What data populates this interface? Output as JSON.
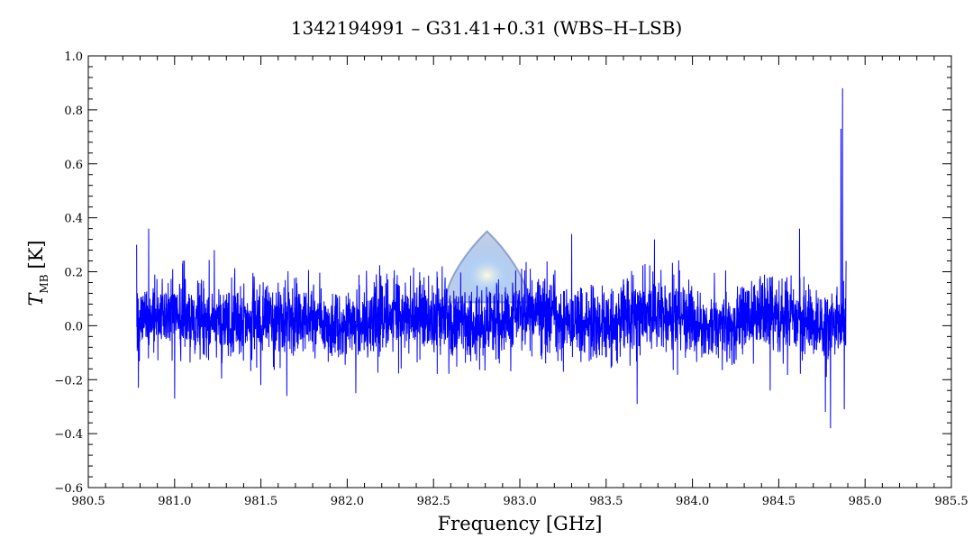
{
  "chart_data": {
    "type": "line",
    "title": "1342194991 – G31.41+0.31 (WBS–H–LSB)",
    "xlabel": "Frequency [GHz]",
    "ylabel_main": "T",
    "ylabel_sub": "MB",
    "ylabel_unit": "[K]",
    "xlim": [
      980.5,
      985.5
    ],
    "ylim": [
      -0.6,
      1.0
    ],
    "x_ticks": [
      "980.5",
      "981.0",
      "981.5",
      "982.0",
      "982.5",
      "983.0",
      "983.5",
      "984.0",
      "984.5",
      "985.0",
      "985.5"
    ],
    "y_ticks": [
      "−0.6",
      "−0.4",
      "−0.2",
      "0.0",
      "0.2",
      "0.4",
      "0.6",
      "0.8",
      "1.0"
    ],
    "grid": false,
    "legend": "none",
    "series": [
      {
        "color": "#0000ff",
        "x_start": 980.78,
        "x_end": 984.89,
        "baseline": 0.02,
        "noise_sigma": 0.07,
        "points": [
          [
            980.78,
            0.3
          ],
          [
            980.79,
            -0.23
          ],
          [
            980.85,
            0.36
          ],
          [
            981.0,
            -0.27
          ],
          [
            981.23,
            0.28
          ],
          [
            981.5,
            -0.22
          ],
          [
            981.65,
            -0.26
          ],
          [
            982.05,
            -0.25
          ],
          [
            982.55,
            0.22
          ],
          [
            983.15,
            -0.14
          ],
          [
            983.3,
            0.34
          ],
          [
            983.68,
            -0.29
          ],
          [
            983.78,
            0.32
          ],
          [
            984.45,
            -0.24
          ],
          [
            984.62,
            0.36
          ],
          [
            984.77,
            -0.32
          ],
          [
            984.8,
            -0.38
          ],
          [
            984.86,
            0.73
          ],
          [
            984.87,
            0.88
          ],
          [
            984.88,
            -0.31
          ],
          [
            984.89,
            0.24
          ]
        ]
      }
    ]
  },
  "watermark": {
    "icon": "herschel-drop-logo-icon",
    "color": "#5a7ab8"
  }
}
